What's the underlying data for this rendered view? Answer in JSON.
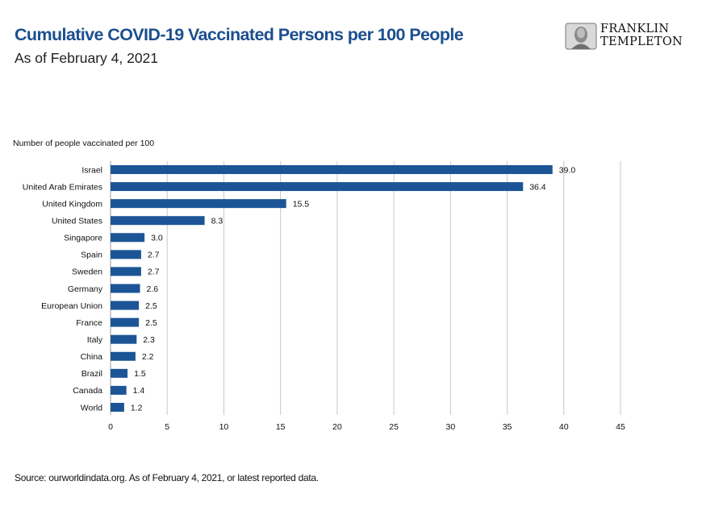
{
  "header": {
    "title": "Cumulative COVID-19 Vaccinated Persons per 100 People",
    "subtitle": "As of February 4, 2021"
  },
  "logo": {
    "line1": "FRANKLIN",
    "line2": "TEMPLETON"
  },
  "footer": {
    "source": "Source: ourworldindata.org. As of February 4, 2021, or latest reported data."
  },
  "colors": {
    "bar": "#1c5596",
    "title": "#1c4f8f",
    "grid": "#c8c8c8"
  },
  "chart_data": {
    "type": "bar",
    "orientation": "horizontal",
    "title": "Cumulative COVID-19 Vaccinated Persons per 100 People",
    "subtitle": "As of February 4, 2021",
    "axis_caption": "Number of people vaccinated per 100",
    "categories": [
      "Israel",
      "United Arab Emirates",
      "United Kingdom",
      "United States",
      "Singapore",
      "Spain",
      "Sweden",
      "Germany",
      "European Union",
      "France",
      "Italy",
      "China",
      "Brazil",
      "Canada",
      "World"
    ],
    "values": [
      39.0,
      36.4,
      15.5,
      8.3,
      3.0,
      2.7,
      2.7,
      2.6,
      2.5,
      2.5,
      2.3,
      2.2,
      1.5,
      1.4,
      1.2
    ],
    "value_labels": [
      "39.0",
      "36.4",
      "15.5",
      "8.3",
      "3.0",
      "2.7",
      "2.7",
      "2.6",
      "2.5",
      "2.5",
      "2.3",
      "2.2",
      "1.5",
      "1.4",
      "1.2"
    ],
    "xlim": [
      0,
      45
    ],
    "xticks": [
      0,
      5,
      10,
      15,
      20,
      25,
      30,
      35,
      40,
      45
    ],
    "grid": "vertical",
    "legend": "none"
  }
}
